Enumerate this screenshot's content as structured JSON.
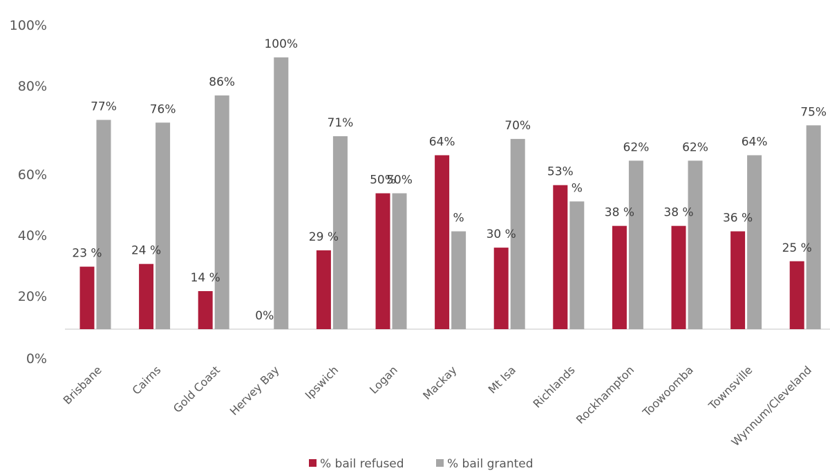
{
  "chart_data": {
    "type": "bar",
    "categories": [
      "Brisbane",
      "Cairns",
      "Gold Coast",
      "Hervey Bay",
      "Ipswich",
      "Logan",
      "Mackay",
      "Mt Isa",
      "Richlands",
      "Rockhampton",
      "Toowoomba",
      "Townsville",
      "Wynnum/Cleveland"
    ],
    "series": [
      {
        "name": "% bail refused",
        "color": "#ae1c3a",
        "values": [
          23,
          24,
          14,
          0,
          29,
          50,
          64,
          30,
          53,
          38,
          38,
          36,
          25
        ],
        "labels": [
          "23 %",
          "24 %",
          "14 %",
          "0%",
          "29 %",
          "50%",
          "64%",
          "30 %",
          "53%",
          "38 %",
          "38 %",
          "36 %",
          "25 %"
        ]
      },
      {
        "name": "% bail granted",
        "color": "#a6a6a6",
        "values": [
          77,
          76,
          86,
          100,
          71,
          50,
          36,
          70,
          47,
          62,
          62,
          64,
          75
        ],
        "labels": [
          "77%",
          "76%",
          "86%",
          "100%",
          "71%",
          "50%",
          "%",
          "70%",
          "%",
          "62%",
          "62%",
          "64%",
          "75%"
        ]
      }
    ],
    "yticks": [
      "0%",
      "20%",
      "40%",
      "60%",
      "80%",
      "100%"
    ],
    "ylim": [
      0,
      100
    ],
    "grid": false,
    "legend": "bottom",
    "title": "",
    "xlabel": "",
    "ylabel": ""
  }
}
